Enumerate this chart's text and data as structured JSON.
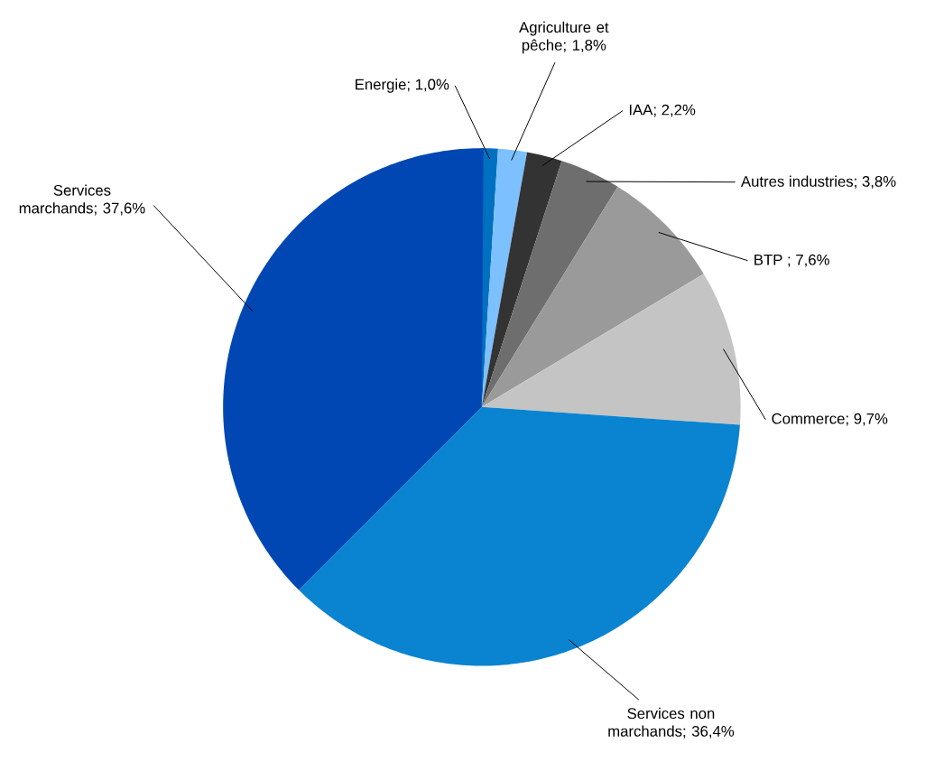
{
  "chart_data": {
    "type": "pie",
    "categories": [
      "Energie; 1,0%",
      "Agriculture et pêche; 1,8%",
      "IAA; 2,2%",
      "Autres industries; 3,8%",
      "BTP ; 7,6%",
      "Commerce; 9,7%",
      "Services non marchands; 36,4%",
      "Services marchands; 37,6%"
    ],
    "values": [
      1.0,
      1.8,
      2.2,
      3.8,
      7.6,
      9.7,
      36.4,
      37.6
    ],
    "colors": [
      "#0070c0",
      "#7cc0ff",
      "#333333",
      "#6e6e6e",
      "#9a9a9a",
      "#c4c4c4",
      "#0a84d0",
      "#0047b3"
    ]
  }
}
